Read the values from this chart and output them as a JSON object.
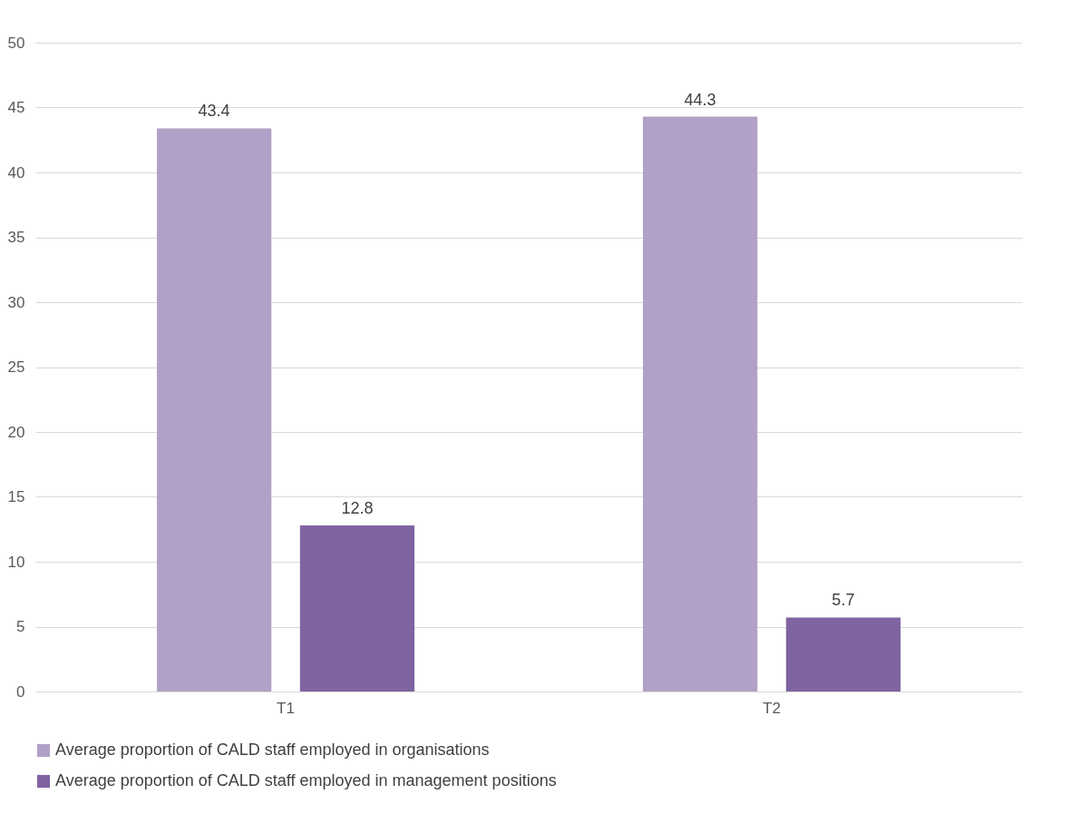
{
  "chart_data": {
    "type": "bar",
    "categories": [
      "T1",
      "T2"
    ],
    "series": [
      {
        "name": "Average proportion of CALD staff employed in organisations",
        "color": "#b1a0c7",
        "values": [
          43.4,
          44.3
        ]
      },
      {
        "name": "Average proportion of CALD staff employed in management positions",
        "color": "#8064a2",
        "values": [
          12.8,
          5.7
        ]
      }
    ],
    "ylim": [
      0,
      50
    ],
    "yticks": [
      0,
      5,
      10,
      15,
      20,
      25,
      30,
      35,
      40,
      45,
      50
    ],
    "grid": "y",
    "legend": "bottom",
    "data_labels": true
  }
}
